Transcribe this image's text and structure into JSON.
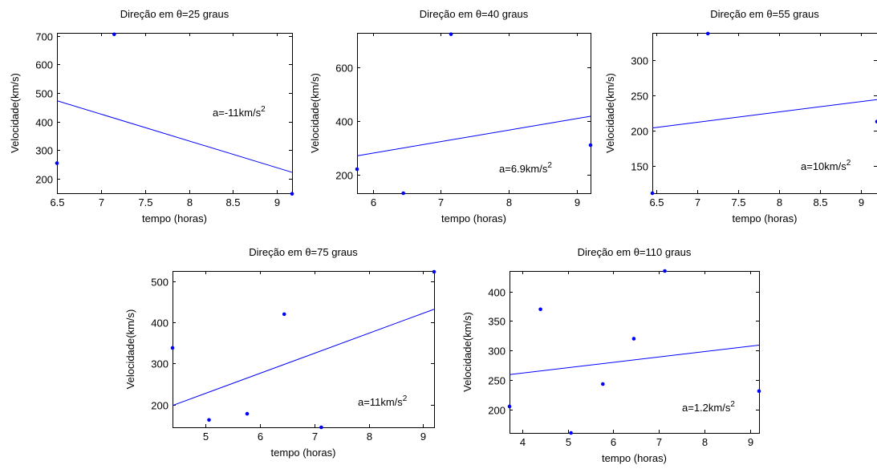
{
  "colors": {
    "series": "#0000ff",
    "axes": "#000000",
    "background": "#ffffff"
  },
  "chart_data": [
    {
      "type": "scatter",
      "title": "Direção em θ=25 graus",
      "xlabel": "tempo (horas)",
      "ylabel": "Velocidade(km/s)",
      "xlim": [
        6.5,
        9.17
      ],
      "ylim": [
        150,
        710
      ],
      "xticks": [
        6.5,
        7,
        7.5,
        8,
        8.5,
        9
      ],
      "xticklabels": [
        "6.5",
        "7",
        "7.5",
        "8",
        "8.5",
        "9"
      ],
      "yticks": [
        200,
        300,
        400,
        500,
        600,
        700
      ],
      "yticklabels": [
        "200",
        "300",
        "400",
        "500",
        "600",
        "700"
      ],
      "points": [
        [
          6.5,
          255
        ],
        [
          7.15,
          705
        ],
        [
          9.17,
          148
        ]
      ],
      "fit_line": [
        [
          6.5,
          473
        ],
        [
          9.17,
          223
        ]
      ],
      "annotation": {
        "base": "a=-11km/s",
        "sup": "2"
      }
    },
    {
      "type": "scatter",
      "title": "Direção em θ=40 graus",
      "xlabel": "tempo (horas)",
      "ylabel": "Velocidade(km/s)",
      "xlim": [
        5.77,
        9.2
      ],
      "ylim": [
        130,
        730
      ],
      "xticks": [
        6,
        7,
        8,
        9
      ],
      "xticklabels": [
        "6",
        "7",
        "8",
        "9"
      ],
      "yticks": [
        200,
        400,
        600
      ],
      "yticklabels": [
        "200",
        "400",
        "600"
      ],
      "points": [
        [
          5.77,
          220
        ],
        [
          6.45,
          130
        ],
        [
          7.15,
          725
        ],
        [
          9.2,
          310
        ]
      ],
      "fit_line": [
        [
          5.77,
          270
        ],
        [
          9.2,
          418
        ]
      ],
      "annotation": {
        "base": "a=6.9km/s",
        "sup": "2"
      }
    },
    {
      "type": "scatter",
      "title": "Direção em θ=55 graus",
      "xlabel": "tempo (horas)",
      "ylabel": "Velocidade(km/s)",
      "xlim": [
        6.45,
        9.2
      ],
      "ylim": [
        112,
        338
      ],
      "xticks": [
        6.5,
        7,
        7.5,
        8,
        8.5,
        9
      ],
      "xticklabels": [
        "6.5",
        "7",
        "7.5",
        "8",
        "8.5",
        "9"
      ],
      "yticks": [
        150,
        200,
        250,
        300
      ],
      "yticklabels": [
        "150",
        "200",
        "250",
        "300"
      ],
      "points": [
        [
          6.45,
          112
        ],
        [
          7.13,
          337
        ],
        [
          9.2,
          213
        ]
      ],
      "fit_line": [
        [
          6.45,
          204
        ],
        [
          9.2,
          244
        ]
      ],
      "annotation": {
        "base": "a=10km/s",
        "sup": "2"
      }
    },
    {
      "type": "scatter",
      "title": "Direção em θ=75 graus",
      "xlabel": "tempo (horas)",
      "ylabel": "Velocidade(km/s)",
      "xlim": [
        4.4,
        9.2
      ],
      "ylim": [
        145,
        525
      ],
      "xticks": [
        5,
        6,
        7,
        8,
        9
      ],
      "xticklabels": [
        "5",
        "6",
        "7",
        "8",
        "9"
      ],
      "yticks": [
        200,
        300,
        400,
        500
      ],
      "yticklabels": [
        "200",
        "300",
        "400",
        "500"
      ],
      "points": [
        [
          4.4,
          338
        ],
        [
          5.07,
          163
        ],
        [
          5.77,
          178
        ],
        [
          6.45,
          420
        ],
        [
          7.13,
          145
        ],
        [
          9.2,
          523
        ]
      ],
      "fit_line": [
        [
          4.4,
          198
        ],
        [
          9.2,
          432
        ]
      ],
      "annotation": {
        "base": "a=11km/s",
        "sup": "2"
      }
    },
    {
      "type": "scatter",
      "title": "Direção em θ=110 graus",
      "xlabel": "tempo (horas)",
      "ylabel": "Velocidade(km/s)",
      "xlim": [
        3.72,
        9.2
      ],
      "ylim": [
        160,
        435
      ],
      "xticks": [
        4,
        5,
        6,
        7,
        8,
        9
      ],
      "xticklabels": [
        "4",
        "5",
        "6",
        "7",
        "8",
        "9"
      ],
      "yticks": [
        200,
        250,
        300,
        350,
        400
      ],
      "yticklabels": [
        "200",
        "250",
        "300",
        "350",
        "400"
      ],
      "points": [
        [
          3.72,
          205
        ],
        [
          4.4,
          370
        ],
        [
          5.07,
          160
        ],
        [
          5.77,
          243
        ],
        [
          6.45,
          320
        ],
        [
          7.13,
          435
        ],
        [
          9.2,
          231
        ]
      ],
      "fit_line": [
        [
          3.72,
          259
        ],
        [
          9.2,
          309
        ]
      ],
      "annotation": {
        "base": "a=1.2km/s",
        "sup": "2"
      }
    }
  ]
}
